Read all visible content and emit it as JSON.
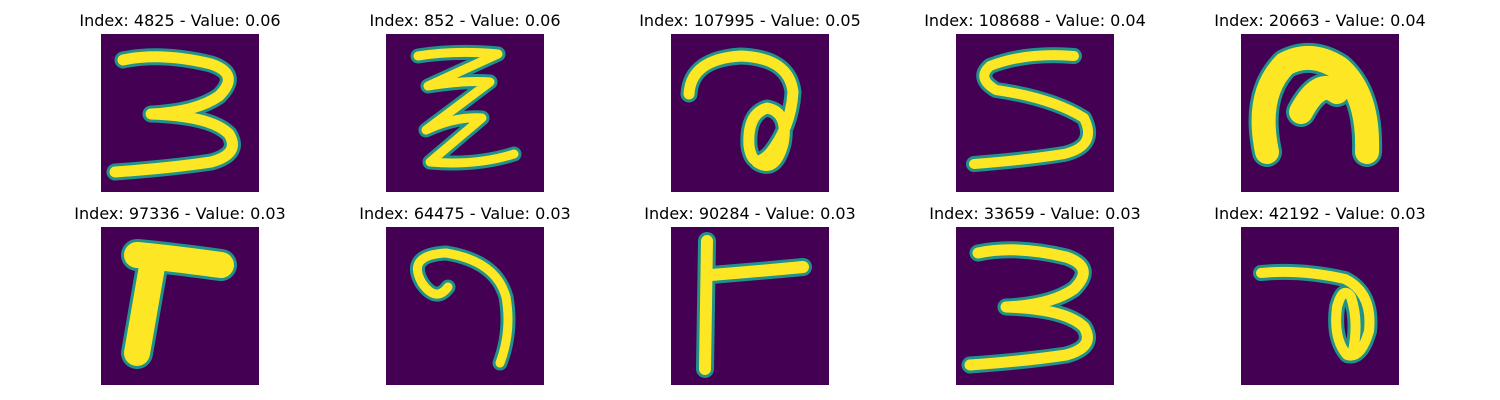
{
  "colors": {
    "background": "#440154",
    "edge": "#21918c",
    "stroke": "#fde725"
  },
  "panels": [
    {
      "title": "Index: 4825 - Value: 0.06",
      "glyph": "digit-3"
    },
    {
      "title": "Index: 852 - Value: 0.06",
      "glyph": "zigzag-z"
    },
    {
      "title": "Index: 107995 - Value: 0.05",
      "glyph": "hook-loop"
    },
    {
      "title": "Index: 108688 - Value: 0.04",
      "glyph": "letter-s"
    },
    {
      "title": "Index: 20663 - Value: 0.04",
      "glyph": "filled-arch"
    },
    {
      "title": "Index: 97336 - Value: 0.03",
      "glyph": "filled-l"
    },
    {
      "title": "Index: 64475 - Value: 0.03",
      "glyph": "curved-hook"
    },
    {
      "title": "Index: 90284 - Value: 0.03",
      "glyph": "letter-t-sideways"
    },
    {
      "title": "Index: 33659 - Value: 0.03",
      "glyph": "digit-3"
    },
    {
      "title": "Index: 42192 - Value: 0.03",
      "glyph": "loop-t"
    }
  ]
}
